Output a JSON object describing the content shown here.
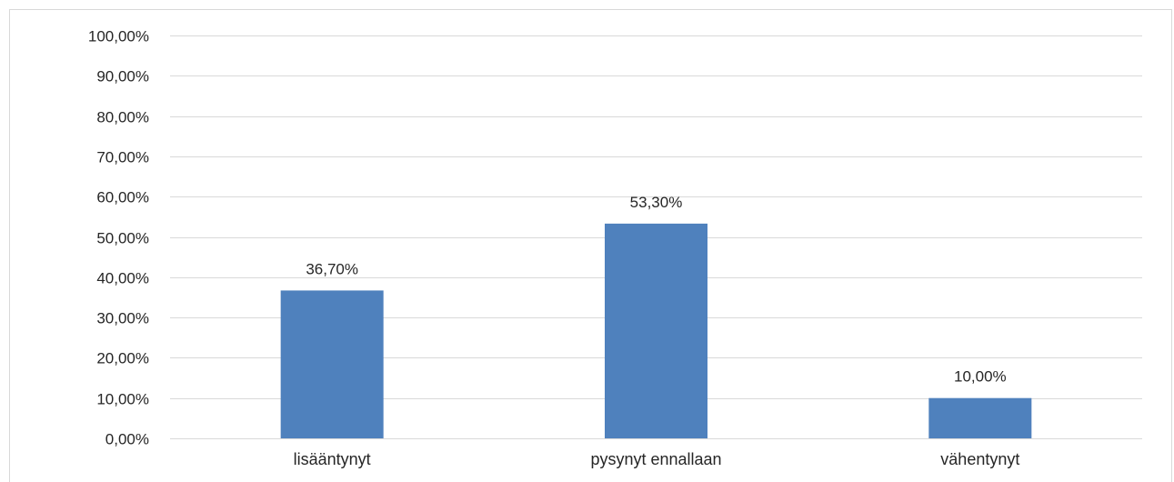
{
  "chart_data": {
    "type": "bar",
    "title": "",
    "xlabel": "",
    "ylabel": "",
    "categories": [
      "lisääntynyt",
      "pysynyt ennallaan",
      "vähentynyt"
    ],
    "values": [
      36.7,
      53.3,
      10.0
    ],
    "data_labels": [
      "36,70%",
      "53,30%",
      "10,00%"
    ],
    "yticks": [
      0,
      10,
      20,
      30,
      40,
      50,
      60,
      70,
      80,
      90,
      100
    ],
    "ytick_labels": [
      "0,00%",
      "10,00%",
      "20,00%",
      "30,00%",
      "40,00%",
      "50,00%",
      "60,00%",
      "70,00%",
      "80,00%",
      "90,00%",
      "100,00%"
    ],
    "ylim": [
      0,
      100
    ],
    "grid": true,
    "legend": "none",
    "bar_color": "#4f81bd",
    "grid_color": "#d9d9d9"
  }
}
